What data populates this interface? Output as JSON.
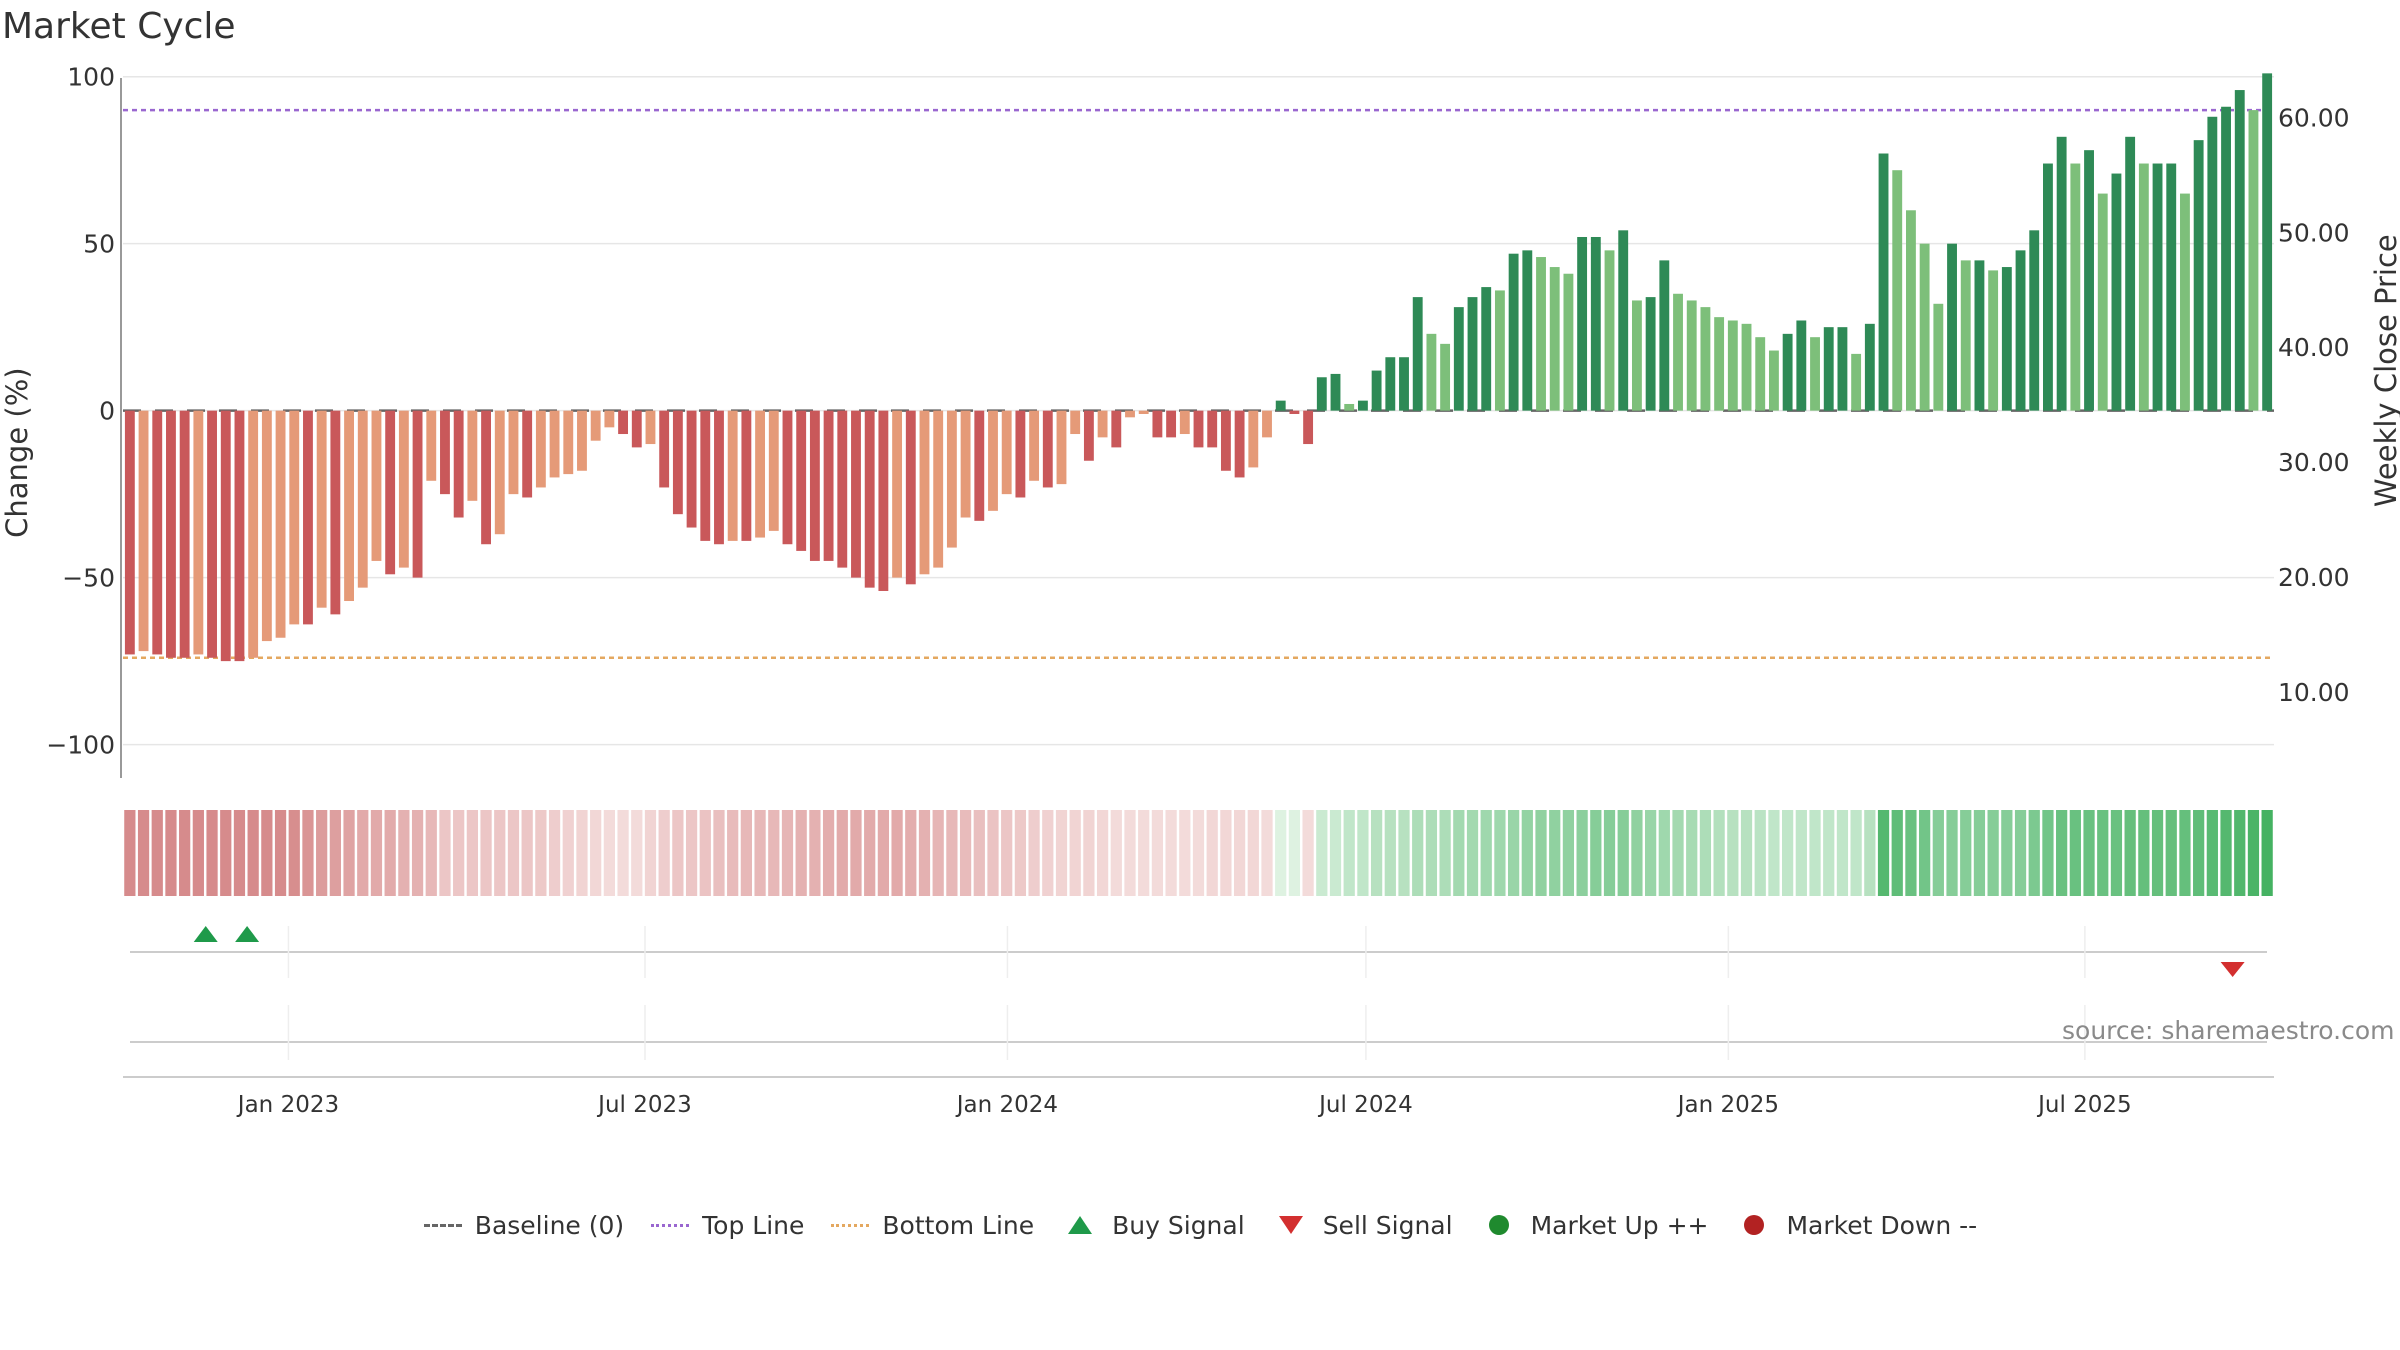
{
  "title": "Market Cycle",
  "source": "source: sharemaestro.com",
  "colors": {
    "neg_dark": "#c9585a",
    "neg_light": "#e59a78",
    "pos_dark": "#2e8a56",
    "pos_light": "#7dbf7a",
    "top_line": "#9a67d0",
    "bottom_line": "#e4a860",
    "buy": "#1f9a4a",
    "sell": "#d32f2f",
    "market_up": "#1f8a2e",
    "market_down": "#b22222",
    "baseline": "#666666"
  },
  "legend": [
    {
      "label": "Baseline (0)",
      "symbol": "dash-line"
    },
    {
      "label": "Top Line",
      "symbol": "dotted-line"
    },
    {
      "label": "Bottom Line",
      "symbol": "dotted-line"
    },
    {
      "label": "Buy Signal",
      "symbol": "triangle-up"
    },
    {
      "label": "Sell Signal",
      "symbol": "triangle-down"
    },
    {
      "label": "Market Up ++",
      "symbol": "circle"
    },
    {
      "label": "Market Down --",
      "symbol": "circle"
    }
  ],
  "chart_data": {
    "type": "bar",
    "ylabel": "Change (%)",
    "y2label": "Weekly Close Price",
    "ylim": [
      -110,
      105
    ],
    "yticks": [
      100,
      50,
      0,
      -50,
      -100
    ],
    "ytick_labels": [
      "100",
      "50",
      "0",
      "−50",
      "−100"
    ],
    "y2ticks": [
      60,
      50,
      40,
      30,
      20,
      10
    ],
    "y2tick_labels": [
      "60.00",
      "50.00",
      "40.00",
      "30.00",
      "20.00",
      "10.00"
    ],
    "y2lim": [
      2.5,
      65
    ],
    "top_line": 90,
    "bottom_line": -74,
    "baseline": 0,
    "x_start": "2022-10-09",
    "x_end": "2025-10-05",
    "xticks": [
      "2023-01-01",
      "2023-07-01",
      "2024-01-01",
      "2024-07-01",
      "2025-01-01",
      "2025-07-01"
    ],
    "xtick_labels": [
      "Jan 2023",
      "Jul 2023",
      "Jan 2024",
      "Jul 2024",
      "Jan 2025",
      "Jul 2025"
    ],
    "series": [
      {
        "values": [
          -73,
          -72,
          -73,
          -74,
          -74,
          -73,
          -74,
          -75,
          -75,
          -74,
          -69,
          -68,
          -64,
          -64,
          -59,
          -61,
          -57,
          -53,
          -45,
          -49,
          -47,
          -50,
          -21,
          -25,
          -32,
          -27,
          -40,
          -37,
          -25,
          -26,
          -23,
          -20,
          -19,
          -18,
          -9,
          -5,
          -7,
          -11,
          -10,
          -23,
          -31,
          -35,
          -39,
          -40,
          -39,
          -39,
          -38,
          -36,
          -40,
          -42,
          -45,
          -45,
          -47,
          -50,
          -53,
          -54,
          -50,
          -52,
          -49,
          -47,
          -41,
          -32,
          -33,
          -30,
          -25,
          -26,
          -21,
          -23,
          -22,
          -7,
          -15,
          -8,
          -11,
          -2,
          -1,
          -8,
          -8,
          -7,
          -11,
          -11,
          -18,
          -20,
          -17,
          -8,
          3,
          -1,
          -10,
          10,
          11,
          2,
          3,
          12,
          16,
          16,
          34,
          23,
          20,
          31,
          34,
          37,
          36,
          47,
          48,
          46,
          43,
          41,
          52,
          52,
          48,
          54,
          33,
          34,
          45,
          35,
          33,
          31,
          28,
          27,
          26,
          22,
          18,
          23,
          27,
          22,
          25,
          25,
          17,
          26,
          77,
          72,
          60,
          50,
          32,
          50,
          45,
          45,
          42,
          43,
          48,
          54,
          74,
          82,
          74,
          78,
          65,
          71,
          82,
          74,
          74,
          74,
          65,
          81,
          88,
          91,
          96,
          90,
          101
        ]
      }
    ],
    "heat_strip": [
      -0.72,
      -0.72,
      -0.72,
      -0.72,
      -0.72,
      -0.72,
      -0.72,
      -0.72,
      -0.72,
      -0.72,
      -0.72,
      -0.72,
      -0.7,
      -0.65,
      -0.6,
      -0.58,
      -0.55,
      -0.5,
      -0.5,
      -0.5,
      -0.45,
      -0.45,
      -0.4,
      -0.3,
      -0.3,
      -0.3,
      -0.3,
      -0.3,
      -0.3,
      -0.3,
      -0.28,
      -0.25,
      -0.22,
      -0.2,
      -0.18,
      -0.15,
      -0.15,
      -0.15,
      -0.2,
      -0.25,
      -0.3,
      -0.3,
      -0.32,
      -0.35,
      -0.38,
      -0.4,
      -0.4,
      -0.4,
      -0.42,
      -0.45,
      -0.45,
      -0.48,
      -0.5,
      -0.5,
      -0.5,
      -0.5,
      -0.5,
      -0.48,
      -0.45,
      -0.42,
      -0.4,
      -0.38,
      -0.35,
      -0.32,
      -0.3,
      -0.28,
      -0.25,
      -0.22,
      -0.2,
      -0.2,
      -0.2,
      -0.18,
      -0.15,
      -0.15,
      -0.15,
      -0.15,
      -0.15,
      -0.15,
      -0.15,
      -0.18,
      -0.18,
      -0.18,
      -0.18,
      -0.15,
      0.1,
      0.1,
      -0.15,
      0.2,
      0.2,
      0.25,
      0.25,
      0.3,
      0.3,
      0.3,
      0.35,
      0.35,
      0.35,
      0.4,
      0.4,
      0.42,
      0.42,
      0.45,
      0.48,
      0.5,
      0.5,
      0.5,
      0.52,
      0.55,
      0.55,
      0.55,
      0.5,
      0.45,
      0.42,
      0.4,
      0.38,
      0.35,
      0.32,
      0.3,
      0.3,
      0.28,
      0.25,
      0.25,
      0.25,
      0.25,
      0.25,
      0.25,
      0.25,
      0.3,
      0.8,
      0.75,
      0.7,
      0.65,
      0.55,
      0.55,
      0.55,
      0.55,
      0.55,
      0.55,
      0.55,
      0.6,
      0.65,
      0.7,
      0.7,
      0.7,
      0.7,
      0.7,
      0.72,
      0.72,
      0.72,
      0.72,
      0.72,
      0.75,
      0.78,
      0.8,
      0.82,
      0.85,
      0.88
    ],
    "buy_signals": [
      "2022-11-20",
      "2022-12-11"
    ],
    "sell_signals": [
      "2025-09-14"
    ],
    "grid": true
  }
}
